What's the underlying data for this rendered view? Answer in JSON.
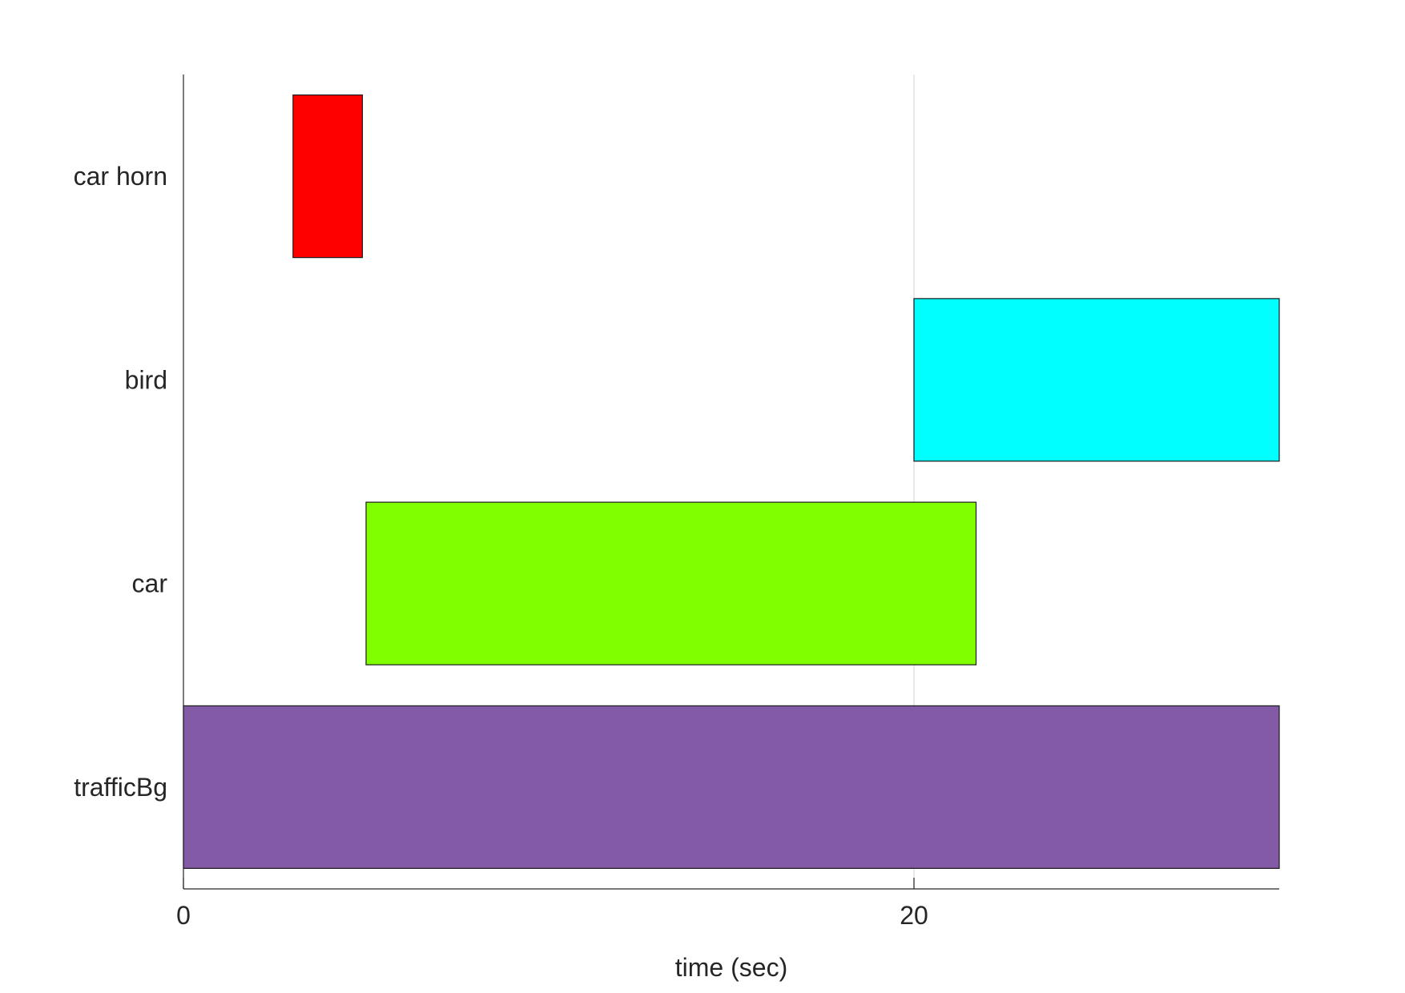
{
  "chart_data": {
    "type": "bar",
    "orientation": "horizontal",
    "chart_subtype": "timeline",
    "title": "",
    "xlabel": "time (sec)",
    "ylabel": "",
    "xlim": [
      0,
      30
    ],
    "xticks": [
      0,
      20
    ],
    "xtick_labels": [
      "0",
      "20"
    ],
    "grid": "vertical line at x=20",
    "legend": "none",
    "categories": [
      "car horn",
      "bird",
      "car",
      "trafficBg"
    ],
    "series": [
      {
        "category": "car horn",
        "start": 3.0,
        "end": 4.9,
        "color": "#ff0000"
      },
      {
        "category": "bird",
        "start": 20.0,
        "end": 30.0,
        "color": "#00ffff"
      },
      {
        "category": "car",
        "start": 5.0,
        "end": 21.7,
        "color": "#80ff00"
      },
      {
        "category": "trafficBg",
        "start": 0.0,
        "end": 30.0,
        "color": "#825aa5"
      }
    ]
  }
}
